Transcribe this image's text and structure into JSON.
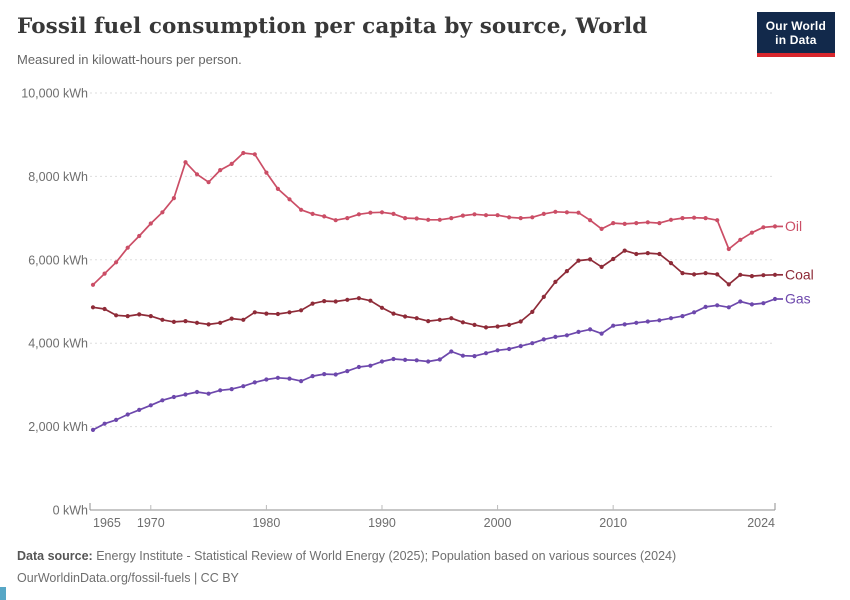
{
  "header": {
    "title": "Fossil fuel consumption per capita by source, World",
    "subtitle": "Measured in kilowatt-hours per person.",
    "logo": {
      "line1": "Our World",
      "line2": "in Data"
    }
  },
  "footer": {
    "data_source_label": "Data source:",
    "data_source_text": "Energy Institute - Statistical Review of World Energy (2025); Population based on various sources (2024)",
    "url": "OurWorldinData.org/fossil-fuels",
    "separator": "|",
    "license": "CC BY"
  },
  "colors": {
    "oil": "#cb4e66",
    "coal": "#8e2b38",
    "gas": "#6d48ac",
    "grid": "#dddddd",
    "axis": "#8f8f8f",
    "logo_navy": "#12294b",
    "logo_red": "#d8262c"
  },
  "chart_data": {
    "type": "line",
    "title": "Fossil fuel consumption per capita by source, World",
    "subtitle": "Measured in kilowatt-hours per person.",
    "xlabel": "",
    "ylabel": "kWh per person",
    "x_range": [
      1965,
      2024
    ],
    "ylim": [
      0,
      10000
    ],
    "grid": true,
    "legend_position": "right-end-labels",
    "y_ticks": [
      {
        "value": 0,
        "label": "0 kWh"
      },
      {
        "value": 2000,
        "label": "2,000 kWh"
      },
      {
        "value": 4000,
        "label": "4,000 kWh"
      },
      {
        "value": 6000,
        "label": "6,000 kWh"
      },
      {
        "value": 8000,
        "label": "8,000 kWh"
      },
      {
        "value": 10000,
        "label": "10,000 kWh"
      }
    ],
    "x_ticks": [
      {
        "year": 1965,
        "label": "1965",
        "anchor": "start"
      },
      {
        "year": 1970,
        "label": "1970",
        "anchor": "middle"
      },
      {
        "year": 1980,
        "label": "1980",
        "anchor": "middle"
      },
      {
        "year": 1990,
        "label": "1990",
        "anchor": "middle"
      },
      {
        "year": 2000,
        "label": "2000",
        "anchor": "middle"
      },
      {
        "year": 2010,
        "label": "2010",
        "anchor": "middle"
      },
      {
        "year": 2024,
        "label": "2024",
        "anchor": "end"
      }
    ],
    "years": [
      1965,
      1966,
      1967,
      1968,
      1969,
      1970,
      1971,
      1972,
      1973,
      1974,
      1975,
      1976,
      1977,
      1978,
      1979,
      1980,
      1981,
      1982,
      1983,
      1984,
      1985,
      1986,
      1987,
      1988,
      1989,
      1990,
      1991,
      1992,
      1993,
      1994,
      1995,
      1996,
      1997,
      1998,
      1999,
      2000,
      2001,
      2002,
      2003,
      2004,
      2005,
      2006,
      2007,
      2008,
      2009,
      2010,
      2011,
      2012,
      2013,
      2014,
      2015,
      2016,
      2017,
      2018,
      2019,
      2020,
      2021,
      2022,
      2023,
      2024
    ],
    "series": [
      {
        "name": "Oil",
        "color": "#cb4e66",
        "values": [
          5400,
          5670,
          5940,
          6290,
          6570,
          6870,
          7140,
          7480,
          8340,
          8050,
          7860,
          8150,
          8300,
          8560,
          8530,
          8090,
          7700,
          7450,
          7200,
          7100,
          7040,
          6950,
          7000,
          7090,
          7130,
          7140,
          7100,
          7000,
          6990,
          6960,
          6960,
          7000,
          7060,
          7090,
          7070,
          7070,
          7020,
          7000,
          7020,
          7100,
          7150,
          7140,
          7130,
          6950,
          6740,
          6880,
          6860,
          6880,
          6900,
          6880,
          6960,
          7000,
          7010,
          7000,
          6950,
          6260,
          6480,
          6650,
          6780,
          6800
        ]
      },
      {
        "name": "Coal",
        "color": "#8e2b38",
        "values": [
          4860,
          4820,
          4670,
          4650,
          4690,
          4650,
          4560,
          4510,
          4530,
          4490,
          4450,
          4490,
          4590,
          4560,
          4740,
          4710,
          4700,
          4740,
          4790,
          4950,
          5010,
          5000,
          5040,
          5080,
          5020,
          4850,
          4710,
          4640,
          4600,
          4530,
          4560,
          4600,
          4500,
          4440,
          4380,
          4400,
          4440,
          4520,
          4750,
          5110,
          5470,
          5730,
          5980,
          6010,
          5830,
          6020,
          6220,
          6140,
          6160,
          6140,
          5920,
          5680,
          5650,
          5680,
          5650,
          5410,
          5640,
          5610,
          5630,
          5640
        ]
      },
      {
        "name": "Gas",
        "color": "#6d48ac",
        "values": [
          1920,
          2070,
          2160,
          2290,
          2400,
          2510,
          2630,
          2710,
          2770,
          2830,
          2790,
          2870,
          2900,
          2970,
          3060,
          3130,
          3170,
          3150,
          3090,
          3210,
          3260,
          3250,
          3330,
          3430,
          3460,
          3560,
          3620,
          3600,
          3590,
          3560,
          3610,
          3800,
          3700,
          3690,
          3760,
          3830,
          3860,
          3930,
          4000,
          4090,
          4150,
          4190,
          4270,
          4330,
          4230,
          4420,
          4450,
          4490,
          4520,
          4550,
          4600,
          4650,
          4740,
          4870,
          4910,
          4860,
          5000,
          4930,
          4960,
          5060
        ]
      }
    ]
  }
}
